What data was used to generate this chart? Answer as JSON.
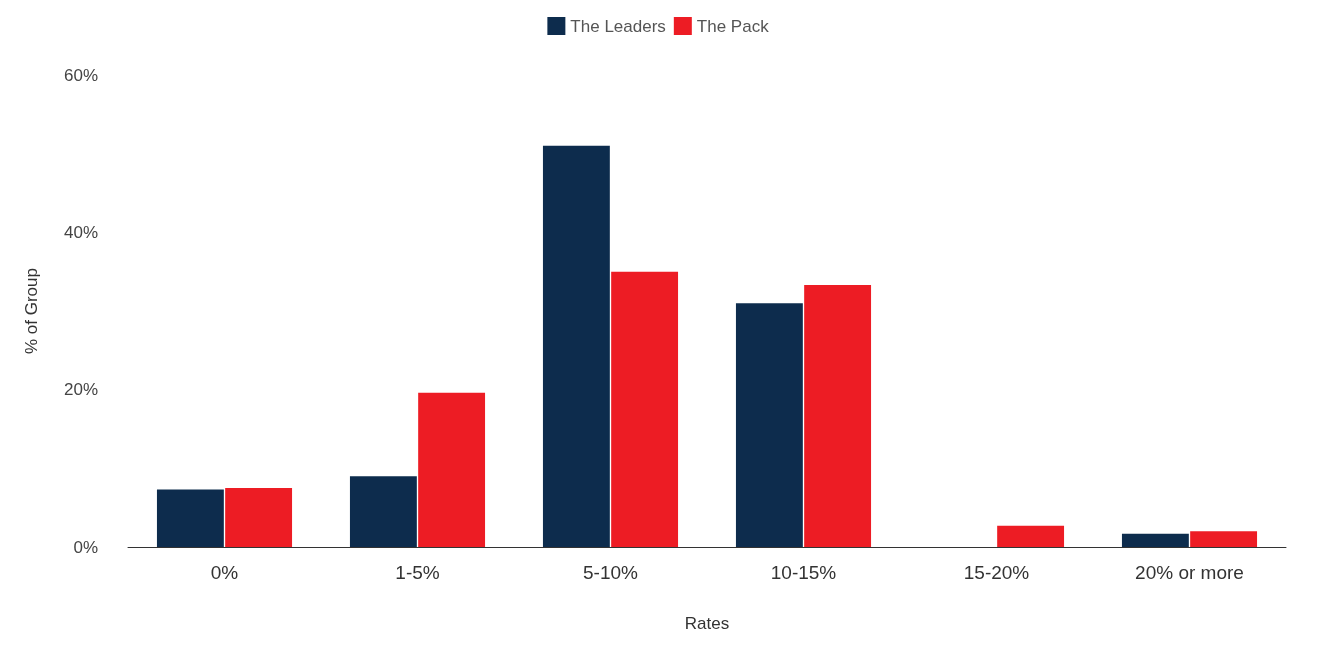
{
  "chart_data": {
    "type": "bar",
    "xlabel": "Rates",
    "ylabel": "% of Group",
    "categories": [
      "0%",
      "1-5%",
      "5-10%",
      "10-15%",
      "15-20%",
      "20% or more"
    ],
    "series": [
      {
        "name": "The Leaders",
        "color": "#0d2c4d",
        "values": [
          7.3,
          9,
          51,
          31,
          0,
          1.7
        ]
      },
      {
        "name": "The Pack",
        "color": "#ed1c24",
        "values": [
          7.5,
          19.6,
          35,
          33.3,
          2.7,
          2
        ]
      }
    ],
    "ylim": [
      0,
      60
    ],
    "yticks": [
      {
        "value": 0,
        "label": "0%"
      },
      {
        "value": 20,
        "label": "20%"
      },
      {
        "value": 40,
        "label": "40%"
      },
      {
        "value": 60,
        "label": "60%"
      }
    ],
    "grid": false,
    "legend": "top"
  }
}
